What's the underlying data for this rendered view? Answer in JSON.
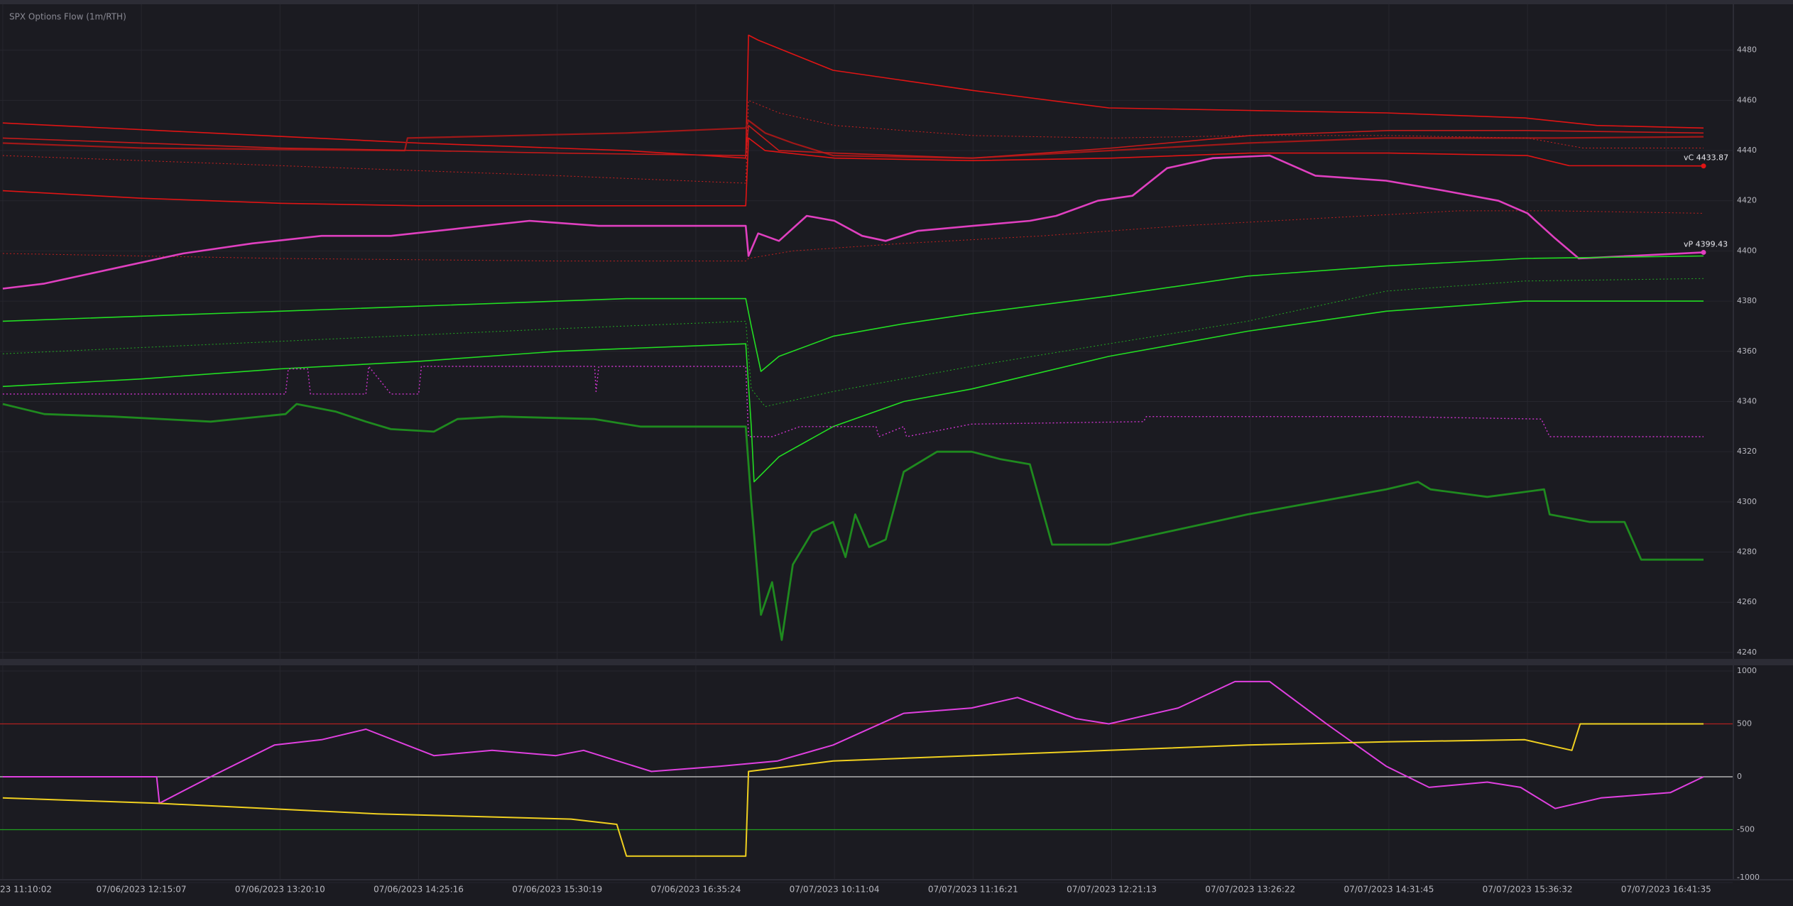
{
  "chart_data": [
    {
      "type": "line",
      "title": "SPX Options Flow (1m/RTH)",
      "xlim": [
        -0.02,
        12.48
      ],
      "ylim": [
        4238,
        4500
      ],
      "yticks": [
        4240,
        4260,
        4280,
        4300,
        4320,
        4340,
        4360,
        4380,
        4400,
        4420,
        4440,
        4460,
        4480
      ],
      "grid": true,
      "series": [
        {
          "color": "#e01414",
          "width": 1.6,
          "dash": false,
          "x": [
            0,
            1.5,
            3,
            4.5,
            5.36,
            5.38,
            5.45,
            5.99,
            6.99,
            7.98,
            8.98,
            9.98,
            10.98,
            11.5,
            12.27
          ],
          "values": [
            4451,
            4447,
            4443,
            4440,
            4437,
            4486,
            4484,
            4472,
            4464,
            4457,
            4456,
            4455,
            4453,
            4450,
            4449
          ]
        },
        {
          "color": "#a01818",
          "width": 2.2,
          "dash": false,
          "x": [
            0,
            1,
            2.9,
            2.92,
            4.5,
            5.36,
            5.38,
            5.5,
            5.7,
            5.99,
            6.99,
            7.98,
            8.98,
            9.98,
            11.2,
            12.27
          ],
          "values": [
            4443,
            4441,
            4440,
            4445,
            4447,
            4449,
            4452,
            4447,
            4443,
            4438,
            4437,
            4440,
            4443,
            4445,
            4445,
            4445.5
          ]
        },
        {
          "color": "#c41a1a",
          "width": 1.6,
          "dash": false,
          "x": [
            0,
            2,
            4,
            5.36,
            5.38,
            5.6,
            6,
            7,
            8,
            9,
            10,
            11,
            12.27
          ],
          "values": [
            4445,
            4441,
            4439,
            4438,
            4450,
            4440,
            4439,
            4437,
            4441,
            4446,
            4448,
            4448,
            4447
          ]
        },
        {
          "color": "#d02020",
          "width": 1,
          "dash": true,
          "x": [
            0,
            2,
            4,
            5.36,
            5.38,
            5.6,
            6,
            7,
            8,
            9,
            10,
            11,
            11.4,
            12.27
          ],
          "values": [
            4438,
            4434,
            4430,
            4427,
            4460,
            4455,
            4450,
            4446,
            4445,
            4446,
            4446,
            4445,
            4441,
            4441
          ]
        },
        {
          "color": "#e01414",
          "width": 1.6,
          "dash": false,
          "x": [
            0,
            1,
            2,
            3,
            4,
            5.36,
            5.38,
            5.5,
            6,
            7,
            8,
            9,
            10,
            11,
            11.3,
            12.27
          ],
          "values": [
            4424,
            4421,
            4419,
            4418,
            4418,
            4418,
            4445,
            4440,
            4437,
            4436,
            4437,
            4439,
            4439,
            4438,
            4434,
            4433.87
          ]
        },
        {
          "color": "#c02020",
          "width": 1,
          "dash": true,
          "x": [
            0,
            2,
            4,
            5.36,
            5.38,
            5.7,
            6.5,
            7.5,
            8.5,
            9.5,
            10.5,
            11.2,
            12.27
          ],
          "values": [
            4399,
            4397,
            4396,
            4396,
            4397,
            4400,
            4403,
            4406,
            4410,
            4413,
            4416,
            4416,
            4415
          ]
        },
        {
          "color": "#e040c0",
          "width": 2.6,
          "dash": false,
          "x": [
            0,
            0.3,
            0.8,
            1.3,
            1.8,
            2.3,
            2.8,
            3.3,
            3.8,
            4.3,
            4.48,
            5.36,
            5.38,
            5.45,
            5.6,
            5.8,
            6.0,
            6.2,
            6.37,
            6.6,
            7.0,
            7.41,
            7.6,
            7.9,
            8.15,
            8.4,
            8.73,
            9.14,
            9.47,
            9.98,
            10.4,
            10.79,
            11.0,
            11.2,
            11.37,
            12.27
          ],
          "values": [
            4385,
            4387,
            4393,
            4399,
            4403,
            4406,
            4406,
            4409,
            4412,
            4410,
            4410,
            4410,
            4398,
            4407,
            4404,
            4414,
            4412,
            4406,
            4404,
            4408,
            4410,
            4412,
            4414,
            4420,
            4422,
            4433,
            4437,
            4438,
            4430,
            4428,
            4424,
            4420,
            4415,
            4405,
            4397,
            4399.43
          ]
        },
        {
          "color": "#22dd22",
          "width": 1.6,
          "dash": false,
          "x": [
            0,
            1,
            2,
            3,
            4,
            4.5,
            5.36,
            5.4,
            5.47,
            5.6,
            5.99,
            6.5,
            6.99,
            7.98,
            8.98,
            9.98,
            10.98,
            12.27
          ],
          "values": [
            4372,
            4374,
            4376,
            4378,
            4380,
            4381,
            4381,
            4370,
            4352,
            4358,
            4366,
            4371,
            4375,
            4382,
            4390,
            4394,
            4397,
            4398
          ]
        },
        {
          "color": "#22aa22",
          "width": 1,
          "dash": true,
          "x": [
            0,
            2,
            4,
            5.36,
            5.4,
            5.5,
            5.99,
            6.99,
            7.98,
            8.98,
            9.98,
            10.98,
            12.27
          ],
          "values": [
            4359,
            4364,
            4369,
            4372,
            4345,
            4338,
            4344,
            4354,
            4363,
            4372,
            4384,
            4388,
            4389
          ]
        },
        {
          "color": "#22dd22",
          "width": 1.6,
          "dash": false,
          "x": [
            0,
            1,
            2,
            3,
            4,
            5.36,
            5.4,
            5.42,
            5.6,
            5.99,
            6.5,
            6.99,
            7.98,
            8.98,
            9.98,
            10.98,
            11.5,
            12.27
          ],
          "values": [
            4346,
            4349,
            4353,
            4356,
            4360,
            4363,
            4330,
            4308,
            4318,
            4330,
            4340,
            4345,
            4358,
            4368,
            4376,
            4380,
            4380,
            4380
          ]
        },
        {
          "color": "#1f8a1f",
          "width": 2.8,
          "dash": false,
          "x": [
            0,
            0.3,
            0.8,
            1.5,
            2.04,
            2.12,
            2.4,
            2.62,
            2.8,
            3.11,
            3.28,
            3.6,
            4.27,
            4.6,
            4.93,
            5.36,
            5.4,
            5.47,
            5.55,
            5.62,
            5.7,
            5.84,
            5.99,
            6.08,
            6.15,
            6.25,
            6.37,
            6.5,
            6.74,
            6.99,
            7.2,
            7.41,
            7.57,
            7.98,
            8.98,
            9.98,
            10.21,
            10.3,
            10.71,
            11.12,
            11.16,
            11.45,
            11.7,
            11.82,
            12.27
          ],
          "values": [
            4339,
            4335,
            4334,
            4332,
            4335,
            4339,
            4336,
            4332,
            4329,
            4328,
            4333,
            4334,
            4333,
            4330,
            4330,
            4330,
            4300,
            4255,
            4268,
            4245,
            4275,
            4288,
            4292,
            4278,
            4295,
            4282,
            4285,
            4312,
            4320,
            4320,
            4317,
            4315,
            4283,
            4283,
            4295,
            4305,
            4308,
            4305,
            4302,
            4305,
            4295,
            4292,
            4292,
            4277,
            4277
          ]
        },
        {
          "color": "#cc33cc",
          "width": 1.4,
          "dash": true,
          "x": [
            0,
            2.04,
            2.06,
            2.2,
            2.22,
            2.62,
            2.64,
            2.8,
            3.0,
            3.02,
            3.2,
            4.27,
            4.28,
            4.3,
            4.5,
            5.36,
            5.38,
            5.55,
            5.75,
            6.3,
            6.32,
            6.5,
            6.52,
            6.99,
            8.23,
            8.25,
            9.98,
            10.0,
            11.1,
            11.16,
            12.27
          ],
          "values": [
            4343,
            4343,
            4353,
            4353,
            4343,
            4343,
            4354,
            4343,
            4343,
            4354,
            4354,
            4354,
            4344,
            4354,
            4354,
            4354,
            4326,
            4326,
            4330,
            4330,
            4326,
            4330,
            4326,
            4331,
            4332,
            4334,
            4334,
            4334,
            4333,
            4326,
            4326
          ]
        }
      ],
      "annotations": [
        {
          "text": "vC 4433.87",
          "x": 12.27,
          "y": 4433.87,
          "color": "#e01414"
        },
        {
          "text": "vP 4399.43",
          "x": 12.27,
          "y": 4399.43,
          "color": "#e040c0"
        }
      ]
    },
    {
      "type": "line",
      "xlim": [
        -0.02,
        12.48
      ],
      "ylim": [
        -1000,
        1000
      ],
      "yticks": [
        -1000,
        -500,
        0,
        500,
        1000
      ],
      "xticks": [
        {
          "value": 0,
          "label": "23 11:10:02"
        },
        {
          "value": 1,
          "label": "07/06/2023 12:15:07"
        },
        {
          "value": 2,
          "label": "07/06/2023 13:20:10"
        },
        {
          "value": 3,
          "label": "07/06/2023 14:25:16"
        },
        {
          "value": 4,
          "label": "07/06/2023 15:30:19"
        },
        {
          "value": 5,
          "label": "07/06/2023 16:35:24"
        },
        {
          "value": 6,
          "label": "07/07/2023 10:11:04"
        },
        {
          "value": 7,
          "label": "07/07/2023 11:16:21"
        },
        {
          "value": 8,
          "label": "07/07/2023 12:21:13"
        },
        {
          "value": 9,
          "label": "07/07/2023 13:26:22"
        },
        {
          "value": 10,
          "label": "07/07/2023 14:31:45"
        },
        {
          "value": 11,
          "label": "07/07/2023 15:36:32"
        },
        {
          "value": 12,
          "label": "07/07/2023 16:41:35"
        }
      ],
      "grid": true,
      "hlines": [
        {
          "value": 500,
          "color": "#b02020"
        },
        {
          "value": 0,
          "color": "#d0d0d0"
        },
        {
          "value": -500,
          "color": "#20a020"
        }
      ],
      "series": [
        {
          "color": "#e040e0",
          "width": 2,
          "dash": false,
          "x": [
            0,
            1.11,
            1.13,
            1.5,
            1.96,
            2.3,
            2.62,
            3.11,
            3.53,
            3.99,
            4.19,
            4.68,
            5.18,
            5.59,
            5.99,
            6.5,
            6.99,
            7.32,
            7.74,
            7.98,
            8.48,
            8.89,
            9.14,
            9.55,
            9.98,
            10.29,
            10.71,
            10.95,
            11.2,
            11.53,
            12.03,
            12.27
          ],
          "values": [
            0,
            0,
            -250,
            0,
            300,
            350,
            450,
            200,
            250,
            200,
            250,
            50,
            100,
            150,
            300,
            600,
            650,
            750,
            550,
            500,
            650,
            900,
            900,
            500,
            100,
            -100,
            -50,
            -100,
            -300,
            -200,
            -150,
            0
          ]
        },
        {
          "color": "#f0d020",
          "width": 2,
          "dash": false,
          "x": [
            0,
            1.11,
            2.7,
            4.1,
            4.43,
            4.5,
            5.36,
            5.38,
            5.99,
            6.99,
            7.98,
            8.98,
            9.98,
            10.98,
            11.32,
            11.38,
            12.27
          ],
          "values": [
            -200,
            -250,
            -350,
            -400,
            -450,
            -750,
            -750,
            50,
            150,
            200,
            250,
            300,
            330,
            350,
            250,
            500,
            500
          ]
        }
      ]
    }
  ]
}
